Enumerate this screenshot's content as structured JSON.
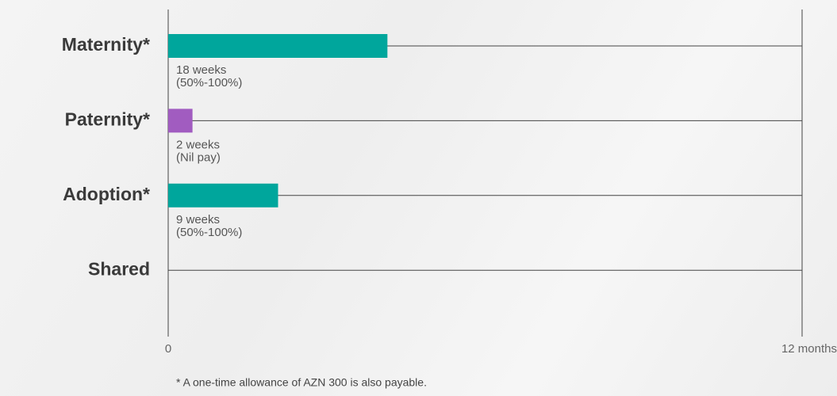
{
  "chart_data": {
    "type": "hbar",
    "categories": [
      "Maternity*",
      "Paternity*",
      "Adoption*",
      "Shared"
    ],
    "values": [
      4.15,
      0.46,
      2.08,
      null
    ],
    "value_labels": [
      [
        "18 weeks",
        "(50%-100%)"
      ],
      [
        "2 weeks",
        "(Nil pay)"
      ],
      [
        "9 weeks",
        "(50%-100%)"
      ],
      null
    ],
    "colors": [
      "#00a69c",
      "#a15cc0",
      "#00a69c",
      null
    ],
    "xlim": [
      0,
      12
    ],
    "xticks": [
      0,
      {
        "value": 12,
        "label": "12 months"
      }
    ],
    "note": "* A one-time allowance of AZN 300 is also payable."
  }
}
